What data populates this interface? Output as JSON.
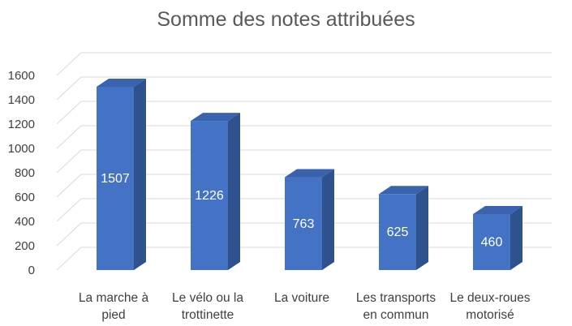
{
  "chart_data": {
    "type": "bar",
    "style": "3d-column",
    "title": "Somme des notes attribuées",
    "categories": [
      [
        "La marche à",
        "pied"
      ],
      [
        "Le vélo ou la",
        "trottinette"
      ],
      [
        "La voiture"
      ],
      [
        "Les transports",
        "en commun"
      ],
      [
        "Le deux-roues",
        "motorisé"
      ]
    ],
    "values": [
      1507,
      1226,
      763,
      625,
      460
    ],
    "value_labels": [
      "1507",
      "1226",
      "763",
      "625",
      "460"
    ],
    "ylim": [
      0,
      1600
    ],
    "yticks": [
      0,
      200,
      400,
      600,
      800,
      1000,
      1200,
      1400,
      1600
    ],
    "grid": true,
    "legend": "none",
    "colors": {
      "bar_front": "#4472C4",
      "bar_side": "#2F528F",
      "bar_top": "#3A62AD",
      "grid": "#D9D9D9",
      "text": "#404040",
      "title": "#595959"
    }
  }
}
